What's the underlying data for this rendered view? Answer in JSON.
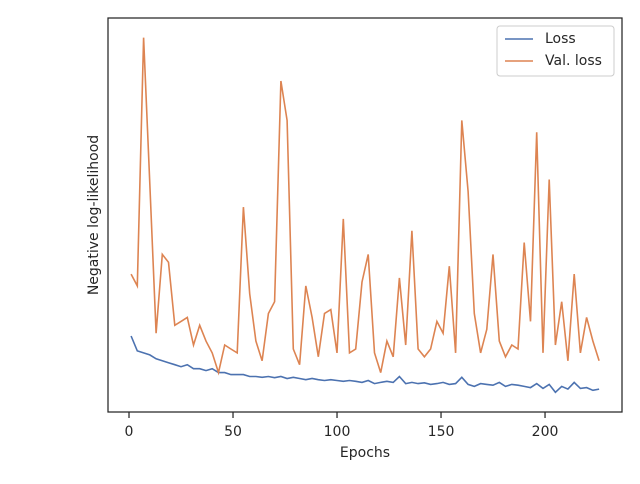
{
  "chart_data": {
    "type": "line",
    "xlabel": "Epochs",
    "ylabel": "Negative log-likelihood",
    "x": [
      1,
      4,
      7,
      10,
      13,
      16,
      19,
      22,
      25,
      28,
      31,
      34,
      37,
      40,
      43,
      46,
      49,
      52,
      55,
      58,
      61,
      64,
      67,
      70,
      73,
      76,
      79,
      82,
      85,
      88,
      91,
      94,
      97,
      100,
      103,
      106,
      109,
      112,
      115,
      118,
      121,
      124,
      127,
      130,
      133,
      136,
      139,
      142,
      145,
      148,
      151,
      154,
      157,
      160,
      163,
      166,
      169,
      172,
      175,
      178,
      181,
      184,
      187,
      190,
      193,
      196,
      199,
      202,
      205,
      208,
      211,
      214,
      217,
      220,
      223,
      226
    ],
    "series": [
      {
        "name": "Loss",
        "color": "#4c72b0",
        "values": [
          1.93,
          1.55,
          1.5,
          1.45,
          1.35,
          1.3,
          1.25,
          1.2,
          1.15,
          1.2,
          1.1,
          1.1,
          1.05,
          1.1,
          1.0,
          1.0,
          0.95,
          0.95,
          0.95,
          0.9,
          0.9,
          0.88,
          0.9,
          0.87,
          0.9,
          0.85,
          0.88,
          0.85,
          0.82,
          0.85,
          0.82,
          0.8,
          0.82,
          0.8,
          0.78,
          0.8,
          0.78,
          0.75,
          0.8,
          0.72,
          0.75,
          0.78,
          0.75,
          0.9,
          0.72,
          0.75,
          0.72,
          0.74,
          0.7,
          0.72,
          0.75,
          0.7,
          0.72,
          0.88,
          0.7,
          0.65,
          0.72,
          0.7,
          0.68,
          0.75,
          0.65,
          0.7,
          0.68,
          0.65,
          0.62,
          0.72,
          0.6,
          0.7,
          0.5,
          0.65,
          0.58,
          0.75,
          0.6,
          0.62,
          0.55,
          0.58
        ]
      },
      {
        "name": "Val. loss",
        "color": "#dd8452",
        "values": [
          3.5,
          3.2,
          9.5,
          5.8,
          2.0,
          4.0,
          3.8,
          2.2,
          2.3,
          2.4,
          1.7,
          2.2,
          1.8,
          1.5,
          1.0,
          1.7,
          1.6,
          1.5,
          5.2,
          3.0,
          1.8,
          1.3,
          2.5,
          2.8,
          8.4,
          7.4,
          1.6,
          1.2,
          3.2,
          2.4,
          1.4,
          2.5,
          2.6,
          1.5,
          4.9,
          1.5,
          1.6,
          3.3,
          4.0,
          1.5,
          1.0,
          1.8,
          1.4,
          3.4,
          1.7,
          4.6,
          1.6,
          1.4,
          1.6,
          2.3,
          2.0,
          3.7,
          1.5,
          7.4,
          5.6,
          2.5,
          1.5,
          2.1,
          4.0,
          1.8,
          1.4,
          1.7,
          1.6,
          4.3,
          2.3,
          7.1,
          1.5,
          5.9,
          1.7,
          2.8,
          1.3,
          3.5,
          1.5,
          2.4,
          1.8,
          1.3
        ]
      }
    ],
    "xlim": [
      -10.1,
      237
    ],
    "xticks": [
      0,
      50,
      100,
      150,
      200
    ],
    "ylim": [
      0,
      10
    ],
    "legend": "upper right"
  }
}
